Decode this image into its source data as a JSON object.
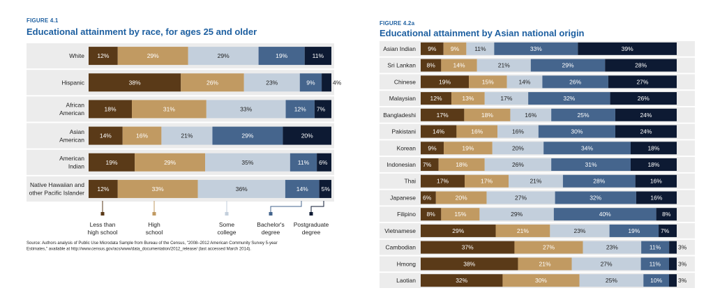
{
  "colors": {
    "less_than_high_school": "#5a3a18",
    "high_school": "#c19a62",
    "some_college": "#c3cfdc",
    "bachelors": "#45658d",
    "postgraduate": "#0d1a33",
    "title": "#1d5fa0",
    "row_band": "#ececec"
  },
  "legend": {
    "items": [
      {
        "lines": [
          "Less than",
          "high school"
        ],
        "color": "#5a3a18"
      },
      {
        "lines": [
          "High",
          "school"
        ],
        "color": "#c19a62"
      },
      {
        "lines": [
          "Some",
          "college"
        ],
        "color": "#c3cfdc"
      },
      {
        "lines": [
          "Bachelor's",
          "degree"
        ],
        "color": "#45658d"
      },
      {
        "lines": [
          "Postgraduate",
          "degree"
        ],
        "color": "#0d1a33"
      }
    ]
  },
  "source": {
    "lines": [
      "Source: Authors analysis of Public Use Microdata Sample from Bureau of the Census, \"2008–2012 American Community Survey 5-year",
      "Estimates,\" available at http://www.census.gov/acs/www/data_documentation/2012_release/ (last accessed March 2014)."
    ]
  },
  "chart_data": [
    {
      "type": "bar",
      "orientation": "horizontal-stacked-100",
      "figure_label": "FIGURE 4.1",
      "title": "Educational attainment by race, for ages 25 and older",
      "categories": [
        [
          "White"
        ],
        [
          "Hispanic"
        ],
        [
          "African",
          "American"
        ],
        [
          "Asian",
          "American"
        ],
        [
          "American",
          "Indian"
        ],
        [
          "Native Hawaiian and",
          "other Pacific Islander"
        ]
      ],
      "series": [
        {
          "name": "Less than high school",
          "values": [
            12,
            38,
            18,
            14,
            19,
            12
          ]
        },
        {
          "name": "High school",
          "values": [
            29,
            26,
            31,
            16,
            29,
            33
          ]
        },
        {
          "name": "Some college",
          "values": [
            29,
            23,
            33,
            21,
            35,
            36
          ]
        },
        {
          "name": "Bachelor's degree",
          "values": [
            19,
            9,
            12,
            29,
            11,
            14
          ]
        },
        {
          "name": "Postgraduate degree",
          "values": [
            11,
            4,
            7,
            20,
            6,
            5
          ]
        }
      ],
      "legend": "bottom"
    },
    {
      "type": "bar",
      "orientation": "horizontal-stacked-100",
      "figure_label": "FIGURE 4.2a",
      "title": "Educational attainment by Asian national origin",
      "categories": [
        [
          "Asian Indian"
        ],
        [
          "Sri Lankan"
        ],
        [
          "Chinese"
        ],
        [
          "Malaysian"
        ],
        [
          "Bangladeshi"
        ],
        [
          "Pakistani"
        ],
        [
          "Korean"
        ],
        [
          "Indonesian"
        ],
        [
          "Thai"
        ],
        [
          "Japanese"
        ],
        [
          "Filipino"
        ],
        [
          "Vietnamese"
        ],
        [
          "Cambodian"
        ],
        [
          "Hmong"
        ],
        [
          "Laotian"
        ]
      ],
      "series": [
        {
          "name": "Less than high school",
          "values": [
            9,
            8,
            19,
            12,
            17,
            14,
            9,
            7,
            17,
            6,
            8,
            29,
            37,
            38,
            32
          ]
        },
        {
          "name": "High school",
          "values": [
            9,
            14,
            15,
            13,
            18,
            16,
            19,
            18,
            17,
            20,
            15,
            21,
            27,
            21,
            30
          ]
        },
        {
          "name": "Some college",
          "values": [
            11,
            21,
            14,
            17,
            16,
            16,
            20,
            26,
            21,
            27,
            29,
            23,
            23,
            27,
            25
          ]
        },
        {
          "name": "Bachelor's degree",
          "values": [
            33,
            29,
            26,
            32,
            25,
            30,
            34,
            31,
            28,
            32,
            40,
            19,
            11,
            11,
            10
          ]
        },
        {
          "name": "Postgraduate degree",
          "values": [
            39,
            28,
            27,
            26,
            24,
            24,
            18,
            18,
            16,
            16,
            8,
            7,
            3,
            3,
            3
          ]
        }
      ]
    }
  ]
}
